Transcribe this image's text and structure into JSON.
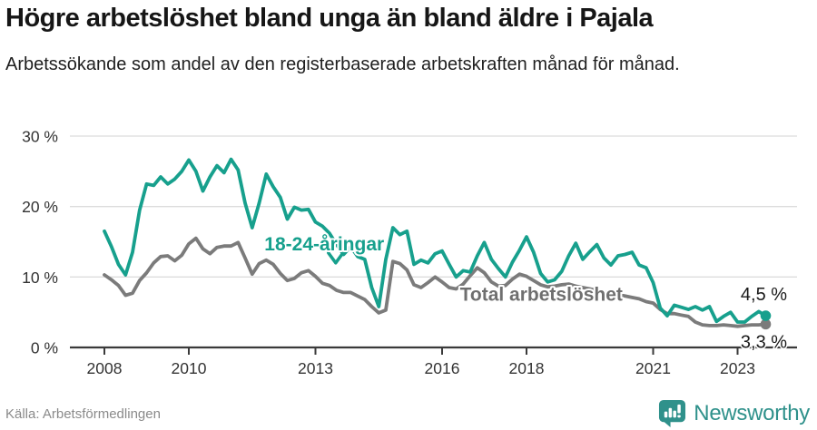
{
  "header": {
    "title": "Högre arbetslöshet bland unga än bland äldre i Pajala",
    "subtitle": "Arbetssökande som andel av den registerbaserade arbetskraften månad för månad."
  },
  "footer": {
    "source": "Källa: Arbetsförmedlingen",
    "brand": "Newsworthy"
  },
  "colors": {
    "youth_teal": "#17a08d",
    "total_gray": "#7b7b7b",
    "annotation_gray": "#6f6f6f",
    "grid": "#dcdcdc",
    "axis": "#3a3a3a",
    "tick_text": "#333333",
    "end_label_text": "#1a1a1a",
    "muted_text": "#8a8a8a",
    "brand_teal": "#2f918b"
  },
  "chart_data": {
    "type": "line",
    "title": "Högre arbetslöshet bland unga än bland äldre i Pajala",
    "subtitle": "Arbetssökande som andel av den registerbaserade arbetskraften månad för månad.",
    "xlabel": "",
    "ylabel": "",
    "grid": "horizontal",
    "legend_position": "inline-annotations",
    "xlim": [
      2007.2,
      2024.4
    ],
    "ylim": [
      0,
      30
    ],
    "x_unit": "year (monthly data)",
    "y_unit": "percent",
    "x_start": 2008.0,
    "x_step_years": 0.166667,
    "x_ticks": [
      2008,
      2010,
      2013,
      2016,
      2018,
      2021,
      2023
    ],
    "x_tick_labels": [
      "2008",
      "2010",
      "2013",
      "2016",
      "2018",
      "2021",
      "2023"
    ],
    "y_ticks": [
      0,
      10,
      20,
      30
    ],
    "y_tick_labels": [
      "0 %",
      "10 %",
      "20 %",
      "30 %"
    ],
    "series": [
      {
        "key": "youth",
        "name": "18-24-åringar",
        "color": "#17a08d",
        "end_value": 4.5,
        "end_label": "4,5 %",
        "values": [
          16.5,
          14.3,
          11.8,
          10.3,
          13.5,
          19.5,
          23.2,
          23.0,
          24.2,
          23.2,
          23.9,
          25.0,
          26.6,
          25.0,
          22.2,
          24.2,
          25.8,
          24.8,
          26.7,
          25.2,
          20.5,
          17.0,
          20.5,
          24.6,
          22.8,
          21.3,
          18.2,
          19.9,
          19.5,
          19.6,
          17.8,
          17.2,
          16.2,
          14.6,
          13.2,
          14.3,
          12.9,
          12.5,
          8.5,
          5.8,
          12.5,
          17.0,
          16.0,
          16.5,
          11.8,
          12.4,
          12.0,
          13.3,
          13.7,
          11.8,
          10.0,
          10.9,
          10.7,
          13.0,
          14.9,
          12.5,
          11.2,
          10.0,
          12.1,
          13.8,
          15.7,
          13.5,
          10.5,
          9.3,
          9.6,
          10.8,
          13.0,
          14.8,
          12.5,
          13.6,
          14.6,
          12.7,
          11.7,
          13.0,
          13.2,
          13.5,
          11.7,
          11.3,
          9.2,
          5.6,
          4.5,
          6.0,
          5.7,
          5.4,
          5.8,
          5.3,
          5.8,
          3.7,
          4.4,
          5.0,
          3.6,
          3.6,
          4.4,
          5.1,
          4.5
        ]
      },
      {
        "key": "total",
        "name": "Total arbetslöshet",
        "color": "#7b7b7b",
        "end_value": 3.3,
        "end_label": "3,3 %",
        "values": [
          10.3,
          9.6,
          8.8,
          7.4,
          7.7,
          9.5,
          10.6,
          12.0,
          12.9,
          13.0,
          12.3,
          13.1,
          14.7,
          15.5,
          14.0,
          13.3,
          14.2,
          14.4,
          14.4,
          14.9,
          12.7,
          10.4,
          11.9,
          12.4,
          11.8,
          10.5,
          9.5,
          9.8,
          10.6,
          10.9,
          10.1,
          9.1,
          8.8,
          8.1,
          7.8,
          7.8,
          7.3,
          6.8,
          5.8,
          4.9,
          5.3,
          12.2,
          11.9,
          11.0,
          8.9,
          8.5,
          9.2,
          10.0,
          9.3,
          8.5,
          8.3,
          9.0,
          10.2,
          11.3,
          10.6,
          9.3,
          8.7,
          8.8,
          9.7,
          10.4,
          10.1,
          9.5,
          8.9,
          8.6,
          8.7,
          8.9,
          9.0,
          8.7,
          8.5,
          8.3,
          8.1,
          7.8,
          7.7,
          7.5,
          7.3,
          7.1,
          6.9,
          6.5,
          6.3,
          5.4,
          4.8,
          4.8,
          4.6,
          4.4,
          3.6,
          3.2,
          3.1,
          3.1,
          3.2,
          3.1,
          3.0,
          3.1,
          3.2,
          3.2,
          3.3
        ]
      }
    ],
    "annotations": [
      {
        "text": "18-24-åringar",
        "x": 2013.21,
        "y": 13.8,
        "color": "#17a08d",
        "arrow": {
          "x": 2013.48,
          "y": 12.0
        }
      },
      {
        "text": "Total arbetslöshet",
        "x": 2018.35,
        "y": 6.6,
        "color": "#6f6f6f"
      }
    ]
  }
}
